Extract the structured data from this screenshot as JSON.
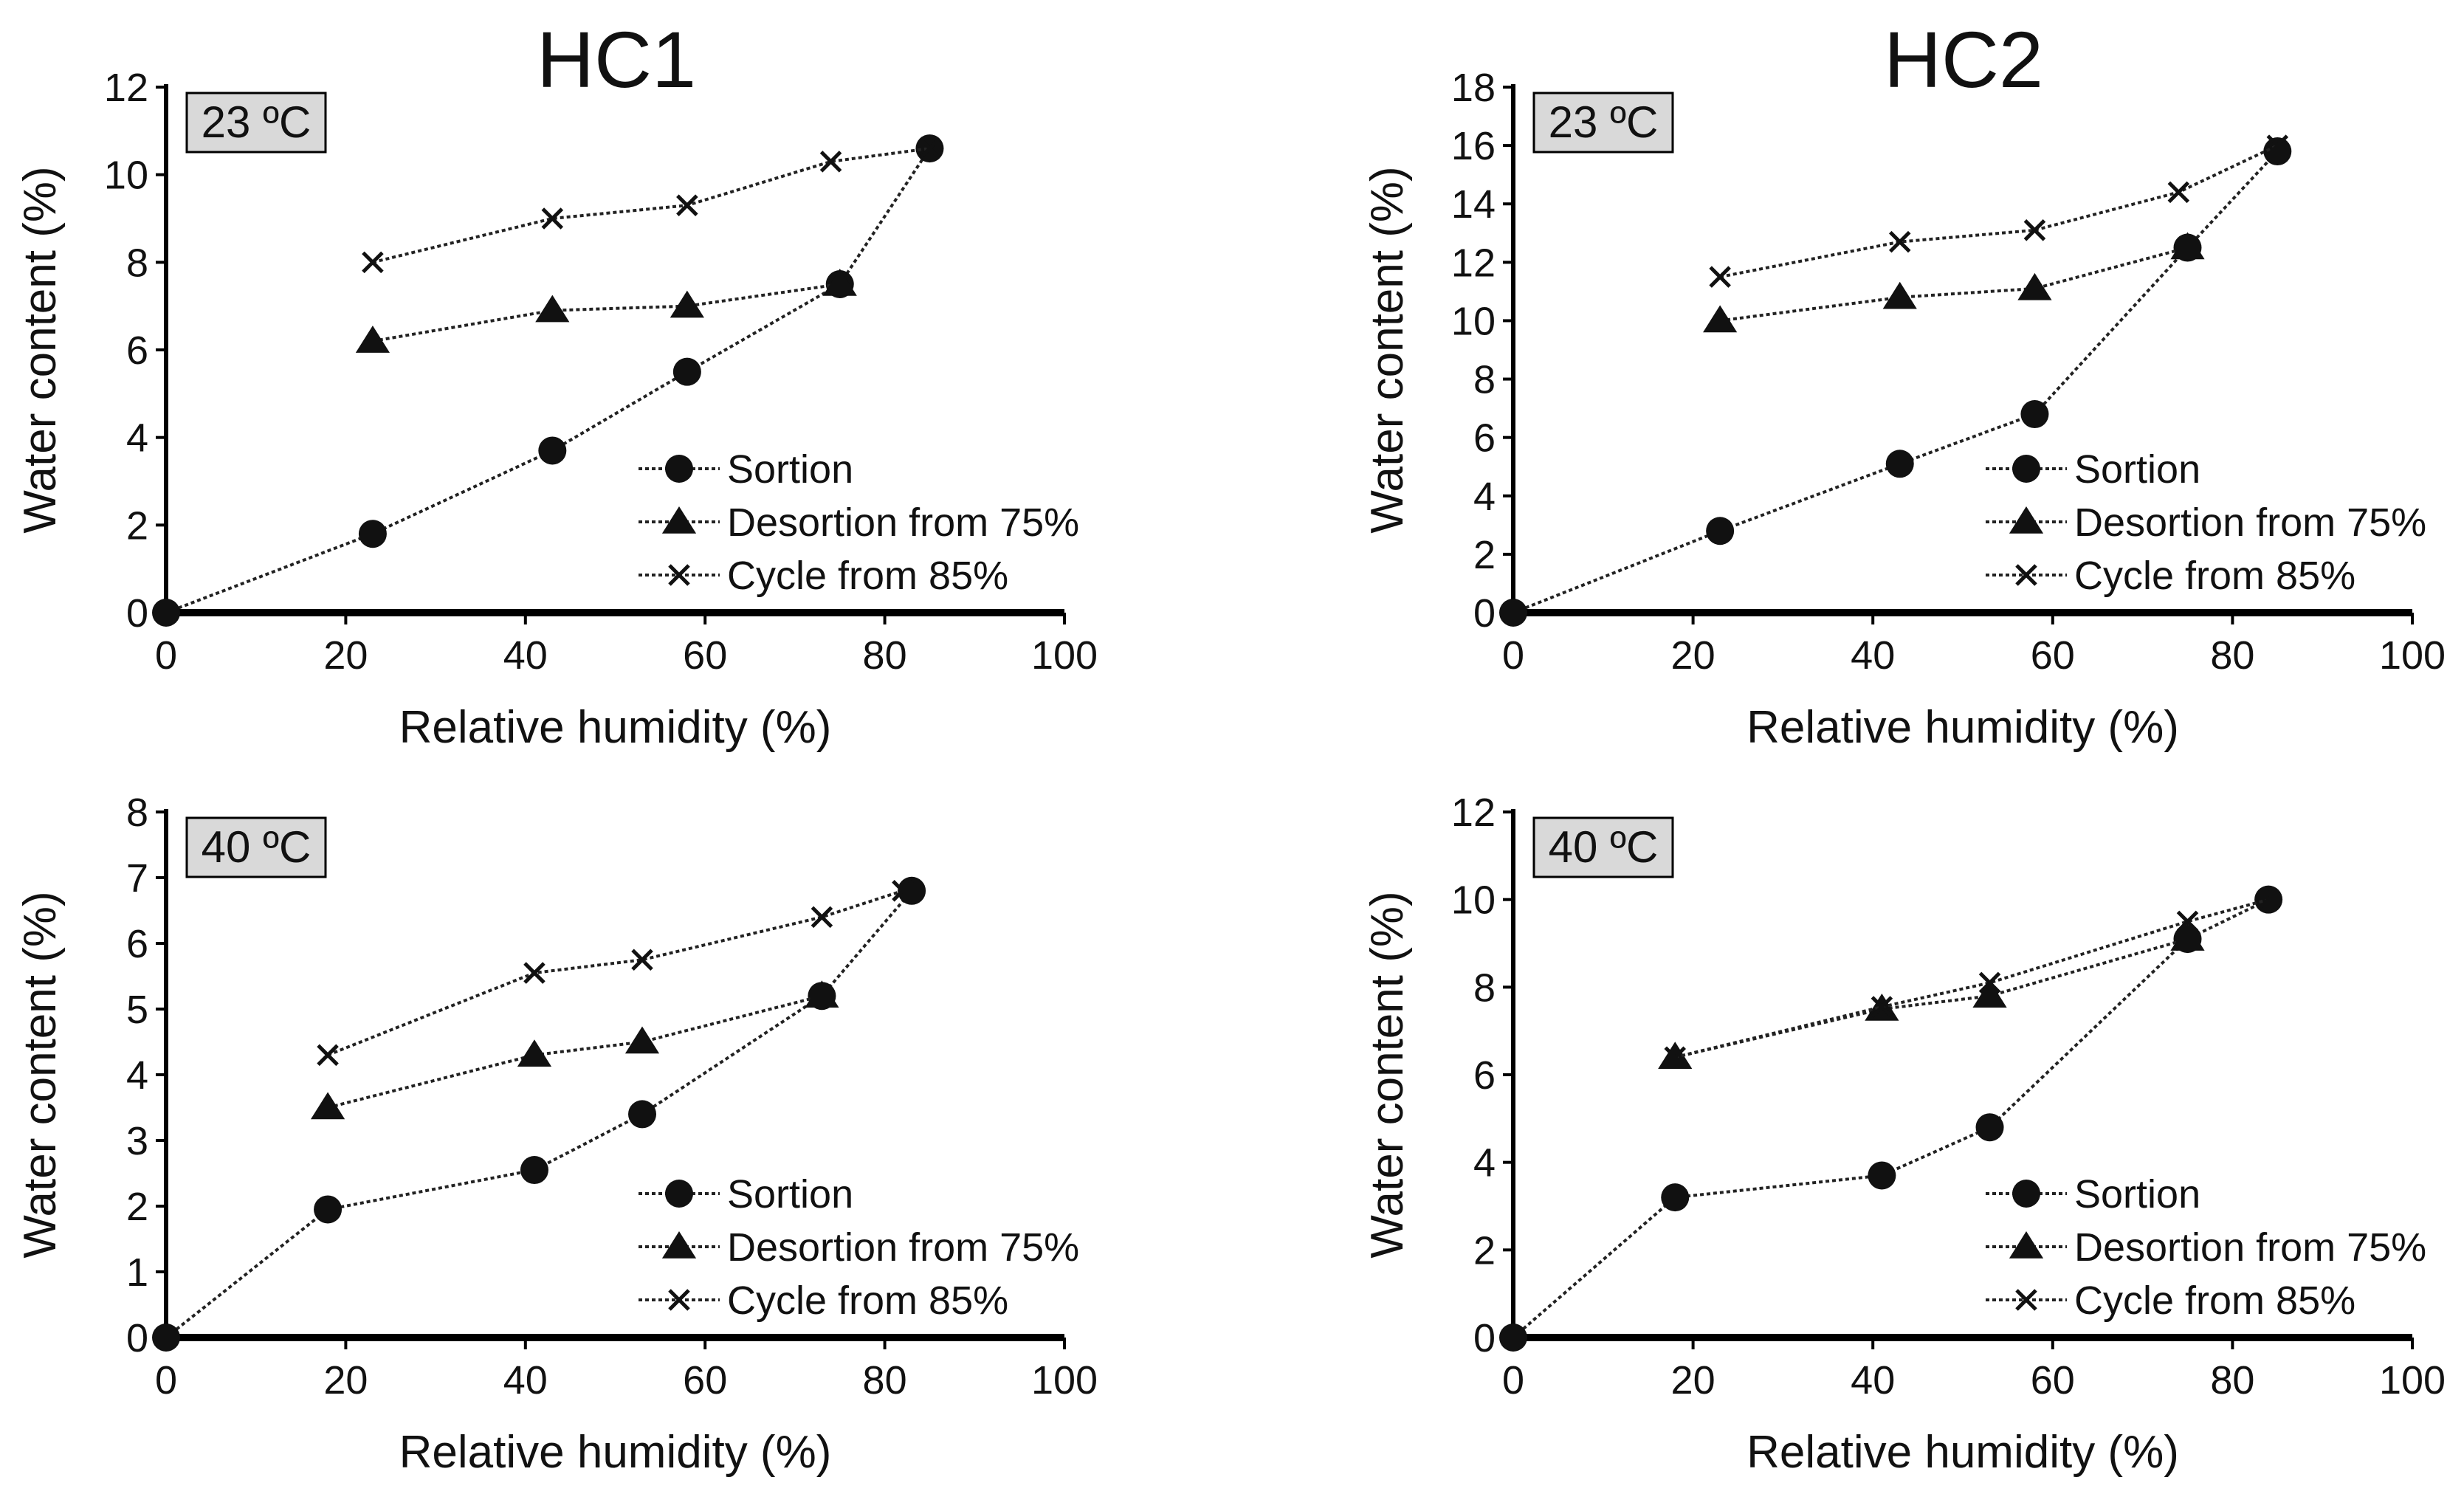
{
  "figure": {
    "column_titles": [
      "HC1",
      "HC2"
    ]
  },
  "legend_labels": [
    "Sortion",
    "Desortion from 75%",
    "Cycle from 85%"
  ],
  "colors": {
    "axis": "#000000",
    "marker": "#111111",
    "line": "#222222",
    "temp_box_fill": "#d9d9d9"
  },
  "chart_data": [
    {
      "type": "line",
      "column_title": "HC1",
      "temperature_label": "23 ºC",
      "xlabel": "Relative humidity (%)",
      "ylabel": "Water content (%)",
      "xlim": [
        0,
        100
      ],
      "ylim": [
        0,
        12
      ],
      "xticks": [
        0,
        20,
        40,
        60,
        80,
        100
      ],
      "yticks": [
        0,
        2,
        4,
        6,
        8,
        10,
        12
      ],
      "legend_position": "lower-right",
      "series": [
        {
          "name": "Sortion",
          "marker": "circle",
          "x": [
            0,
            23,
            43,
            58,
            75,
            85
          ],
          "y": [
            0,
            1.8,
            3.7,
            5.5,
            7.5,
            10.6
          ]
        },
        {
          "name": "Desortion from 75%",
          "marker": "triangle",
          "x": [
            23,
            43,
            58,
            75
          ],
          "y": [
            6.2,
            6.9,
            7.0,
            7.5
          ]
        },
        {
          "name": "Cycle from 85%",
          "marker": "x",
          "x": [
            23,
            43,
            58,
            74,
            85
          ],
          "y": [
            8.0,
            9.0,
            9.3,
            10.3,
            10.6
          ]
        }
      ]
    },
    {
      "type": "line",
      "column_title": "HC2",
      "temperature_label": "23 ºC",
      "xlabel": "Relative humidity (%)",
      "ylabel": "Water content (%)",
      "xlim": [
        0,
        100
      ],
      "ylim": [
        0,
        18
      ],
      "xticks": [
        0,
        20,
        40,
        60,
        80,
        100
      ],
      "yticks": [
        0,
        2,
        4,
        6,
        8,
        10,
        12,
        14,
        16,
        18
      ],
      "legend_position": "lower-right",
      "series": [
        {
          "name": "Sortion",
          "marker": "circle",
          "x": [
            0,
            23,
            43,
            58,
            75,
            85
          ],
          "y": [
            0,
            2.8,
            5.1,
            6.8,
            12.5,
            15.8
          ]
        },
        {
          "name": "Desortion from 75%",
          "marker": "triangle",
          "x": [
            23,
            43,
            58,
            75
          ],
          "y": [
            10.0,
            10.8,
            11.1,
            12.5
          ]
        },
        {
          "name": "Cycle from 85%",
          "marker": "x",
          "x": [
            23,
            43,
            58,
            74,
            85
          ],
          "y": [
            11.5,
            12.7,
            13.1,
            14.4,
            16.0
          ]
        }
      ]
    },
    {
      "type": "line",
      "column_title": "HC1",
      "temperature_label": "40 ºC",
      "xlabel": "Relative humidity (%)",
      "ylabel": "Water content (%)",
      "xlim": [
        0,
        100
      ],
      "ylim": [
        0,
        8
      ],
      "xticks": [
        0,
        20,
        40,
        60,
        80,
        100
      ],
      "yticks": [
        0,
        1,
        2,
        3,
        4,
        5,
        6,
        7,
        8
      ],
      "legend_position": "lower-right",
      "series": [
        {
          "name": "Sortion",
          "marker": "circle",
          "x": [
            0,
            18,
            41,
            53,
            73,
            83
          ],
          "y": [
            0,
            1.95,
            2.55,
            3.4,
            5.2,
            6.8
          ]
        },
        {
          "name": "Desortion from 75%",
          "marker": "triangle",
          "x": [
            18,
            41,
            53,
            73
          ],
          "y": [
            3.5,
            4.3,
            4.5,
            5.2
          ]
        },
        {
          "name": "Cycle from 85%",
          "marker": "x",
          "x": [
            18,
            41,
            53,
            73,
            82
          ],
          "y": [
            4.3,
            5.55,
            5.75,
            6.4,
            6.8
          ]
        }
      ]
    },
    {
      "type": "line",
      "column_title": "HC2",
      "temperature_label": "40 ºC",
      "xlabel": "Relative humidity (%)",
      "ylabel": "Water content (%)",
      "xlim": [
        0,
        100
      ],
      "ylim": [
        0,
        12
      ],
      "xticks": [
        0,
        20,
        40,
        60,
        80,
        100
      ],
      "yticks": [
        0,
        2,
        4,
        6,
        8,
        10,
        12
      ],
      "legend_position": "lower-right",
      "series": [
        {
          "name": "Sortion",
          "marker": "circle",
          "x": [
            0,
            18,
            41,
            53,
            75,
            84
          ],
          "y": [
            0,
            3.2,
            3.7,
            4.8,
            9.1,
            10.0
          ]
        },
        {
          "name": "Desortion from 75%",
          "marker": "triangle",
          "x": [
            18,
            41,
            53,
            75
          ],
          "y": [
            6.4,
            7.5,
            7.8,
            9.1
          ]
        },
        {
          "name": "Cycle from 85%",
          "marker": "x",
          "x": [
            18,
            41,
            53,
            75,
            84
          ],
          "y": [
            6.4,
            7.55,
            8.1,
            9.5,
            10.0
          ]
        }
      ]
    }
  ]
}
